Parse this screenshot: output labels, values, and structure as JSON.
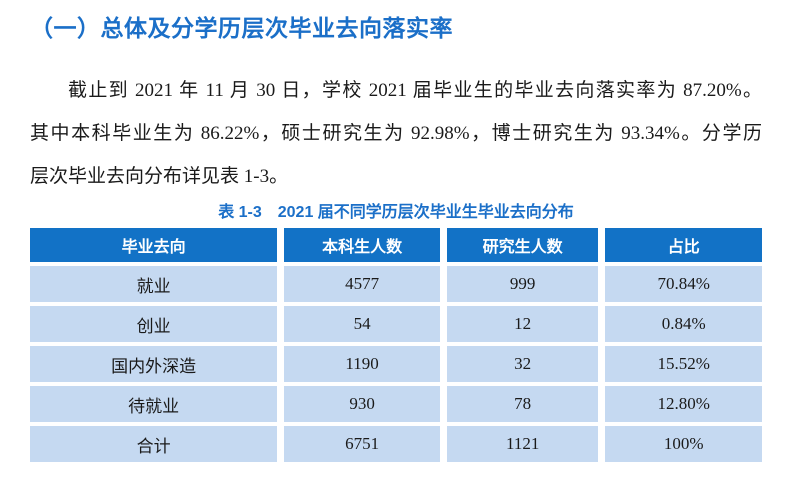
{
  "colors": {
    "accent_blue": "#1B6FC8",
    "table_header_bg": "#1272C6",
    "table_header_text": "#FFFFFF",
    "table_row_bg": "#C5D9F1",
    "body_text": "#1A1A1A",
    "page_bg": "#FFFFFF"
  },
  "heading": "（一）总体及分学历层次毕业去向落实率",
  "paragraph": {
    "line1": "截止到 2021 年 11 月 30 日，学校 2021 届毕业生的毕业去向落实率为 87.20%。",
    "line2": "其中本科毕业生为 86.22%，硕士研究生为 92.98%，博士研究生为 93.34%。分学历",
    "line3": "层次毕业去向分布详见表 1-3。"
  },
  "table": {
    "title": "表 1-3　2021 届不同学历层次毕业生毕业去向分布",
    "headers": [
      "毕业去向",
      "本科生人数",
      "研究生人数",
      "占比"
    ],
    "rows": [
      [
        "就业",
        "4577",
        "999",
        "70.84%"
      ],
      [
        "创业",
        "54",
        "12",
        "0.84%"
      ],
      [
        "国内外深造",
        "1190",
        "32",
        "15.52%"
      ],
      [
        "待就业",
        "930",
        "78",
        "12.80%"
      ],
      [
        "合计",
        "6751",
        "1121",
        "100%"
      ]
    ]
  }
}
